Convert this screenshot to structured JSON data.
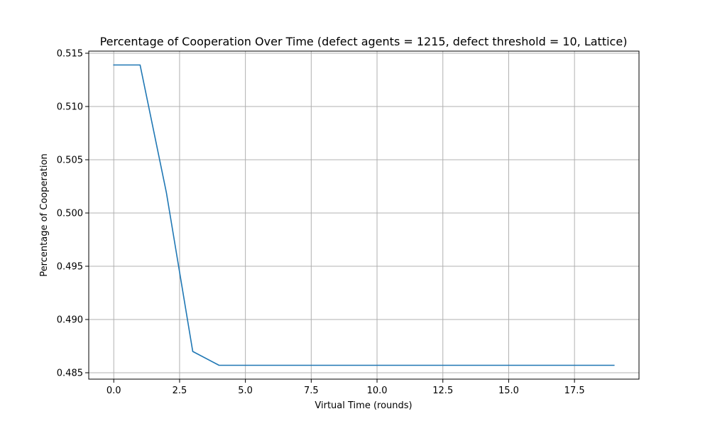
{
  "chart_data": {
    "type": "line",
    "title": "Percentage of Cooperation Over Time (defect agents = 1215, defect threshold = 10, Lattice)",
    "xlabel": "Virtual Time (rounds)",
    "ylabel": "Percentage of Cooperation",
    "xlim": [
      -0.95,
      19.95
    ],
    "ylim": [
      0.4844,
      0.5152
    ],
    "xticks": [
      0,
      2.5,
      5,
      7.5,
      10,
      12.5,
      15,
      17.5
    ],
    "xtick_labels": [
      "0.0",
      "2.5",
      "5.0",
      "7.5",
      "10.0",
      "12.5",
      "15.0",
      "17.5"
    ],
    "yticks": [
      0.485,
      0.49,
      0.495,
      0.5,
      0.505,
      0.51,
      0.515
    ],
    "ytick_labels": [
      "0.485",
      "0.490",
      "0.495",
      "0.500",
      "0.505",
      "0.510",
      "0.515"
    ],
    "grid": true,
    "series": [
      {
        "color": "#1f77b4",
        "x": [
          0,
          1,
          2,
          3,
          4,
          5,
          6,
          7,
          8,
          9,
          10,
          11,
          12,
          13,
          14,
          15,
          16,
          17,
          18,
          19
        ],
        "y": [
          0.5139,
          0.5139,
          0.5019,
          0.487,
          0.4857,
          0.4857,
          0.4857,
          0.4857,
          0.4857,
          0.4857,
          0.4857,
          0.4857,
          0.4857,
          0.4857,
          0.4857,
          0.4857,
          0.4857,
          0.4857,
          0.4857,
          0.4857
        ]
      }
    ]
  }
}
